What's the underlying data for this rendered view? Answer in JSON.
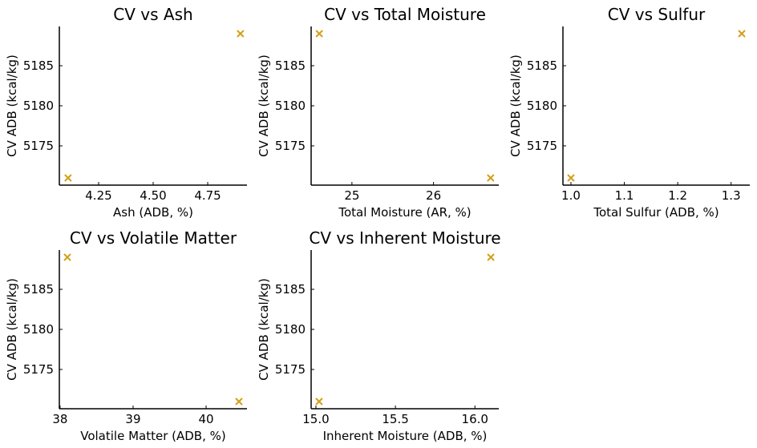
{
  "chart_data": [
    {
      "type": "scatter",
      "title": "CV vs Ash",
      "xlabel": "Ash (ADB, %)",
      "ylabel": "CV ADB (kcal/kg)",
      "x": [
        4.11,
        4.9
      ],
      "y": [
        5171,
        5189
      ],
      "xlim": [
        4.07,
        4.93
      ],
      "ylim": [
        5170.1,
        5189.9
      ],
      "xticks": [
        4.25,
        4.5,
        4.75
      ],
      "xtick_labels": [
        "4.25",
        "4.50",
        "4.75"
      ],
      "yticks": [
        5175,
        5180,
        5185
      ],
      "ytick_labels": [
        "5175",
        "5180",
        "5185"
      ],
      "grid": false,
      "marker_color": "#D4A017"
    },
    {
      "type": "scatter",
      "title": "CV vs Total Moisture",
      "xlabel": "Total Moisture (AR, %)",
      "ylabel": "CV ADB (kcal/kg)",
      "x": [
        24.6,
        26.7
      ],
      "y": [
        5189,
        5171
      ],
      "xlim": [
        24.5,
        26.8
      ],
      "ylim": [
        5170.1,
        5189.9
      ],
      "xticks": [
        25,
        26
      ],
      "xtick_labels": [
        "25",
        "26"
      ],
      "yticks": [
        5175,
        5180,
        5185
      ],
      "ytick_labels": [
        "5175",
        "5180",
        "5185"
      ],
      "grid": false,
      "marker_color": "#D4A017"
    },
    {
      "type": "scatter",
      "title": "CV vs Sulfur",
      "xlabel": "Total Sulfur (ADB, %)",
      "ylabel": "CV ADB (kcal/kg)",
      "x": [
        1.0,
        1.32
      ],
      "y": [
        5171,
        5189
      ],
      "xlim": [
        0.985,
        1.335
      ],
      "ylim": [
        5170.1,
        5189.9
      ],
      "xticks": [
        1.0,
        1.1,
        1.2,
        1.3
      ],
      "xtick_labels": [
        "1.0",
        "1.1",
        "1.2",
        "1.3"
      ],
      "yticks": [
        5175,
        5180,
        5185
      ],
      "ytick_labels": [
        "5175",
        "5180",
        "5185"
      ],
      "grid": false,
      "marker_color": "#D4A017"
    },
    {
      "type": "scatter",
      "title": "CV vs Volatile Matter",
      "xlabel": "Volatile Matter (ADB, %)",
      "ylabel": "CV ADB (kcal/kg)",
      "x": [
        38.1,
        40.45
      ],
      "y": [
        5189,
        5171
      ],
      "xlim": [
        37.99,
        40.56
      ],
      "ylim": [
        5170.1,
        5189.9
      ],
      "xticks": [
        38,
        39,
        40
      ],
      "xtick_labels": [
        "38",
        "39",
        "40"
      ],
      "yticks": [
        5175,
        5180,
        5185
      ],
      "ytick_labels": [
        "5175",
        "5180",
        "5185"
      ],
      "grid": false,
      "marker_color": "#D4A017"
    },
    {
      "type": "scatter",
      "title": "CV vs Inherent Moisture",
      "xlabel": "Inherent Moisture (ADB, %)",
      "ylabel": "CV ADB (kcal/kg)",
      "x": [
        15.02,
        16.1
      ],
      "y": [
        5171,
        5189
      ],
      "xlim": [
        14.97,
        16.15
      ],
      "ylim": [
        5170.1,
        5189.9
      ],
      "xticks": [
        15.0,
        15.5,
        16.0
      ],
      "xtick_labels": [
        "15.0",
        "15.5",
        "16.0"
      ],
      "yticks": [
        5175,
        5180,
        5185
      ],
      "ytick_labels": [
        "5175",
        "5180",
        "5185"
      ],
      "grid": false,
      "marker_color": "#D4A017"
    }
  ]
}
